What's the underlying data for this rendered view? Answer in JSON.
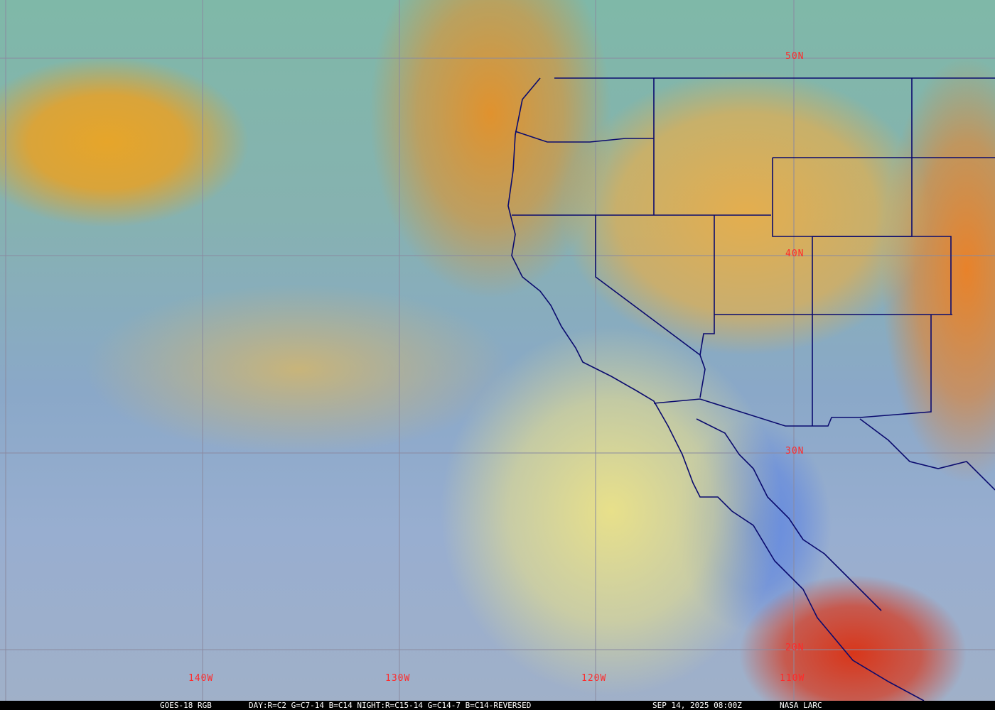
{
  "image": {
    "type": "satellite-imagery",
    "palette": {
      "grid": "#8a8aa0",
      "boundaries": "#0a0a6e",
      "labels": "#ff2a2a"
    }
  },
  "latitude_labels": [
    "50N",
    "40N",
    "30N",
    "20N"
  ],
  "longitude_labels": [
    "140W",
    "130W",
    "120W",
    "110W"
  ],
  "caption": {
    "product": "GOES-18 RGB",
    "recipe": "DAY:R=C2 G=C7-14 B=C14 NIGHT:R=C15-14 G=C14-7 B=C14-REVERSED",
    "timestamp": "SEP 14, 2025 08:00Z",
    "credit": "NASA LARC"
  }
}
